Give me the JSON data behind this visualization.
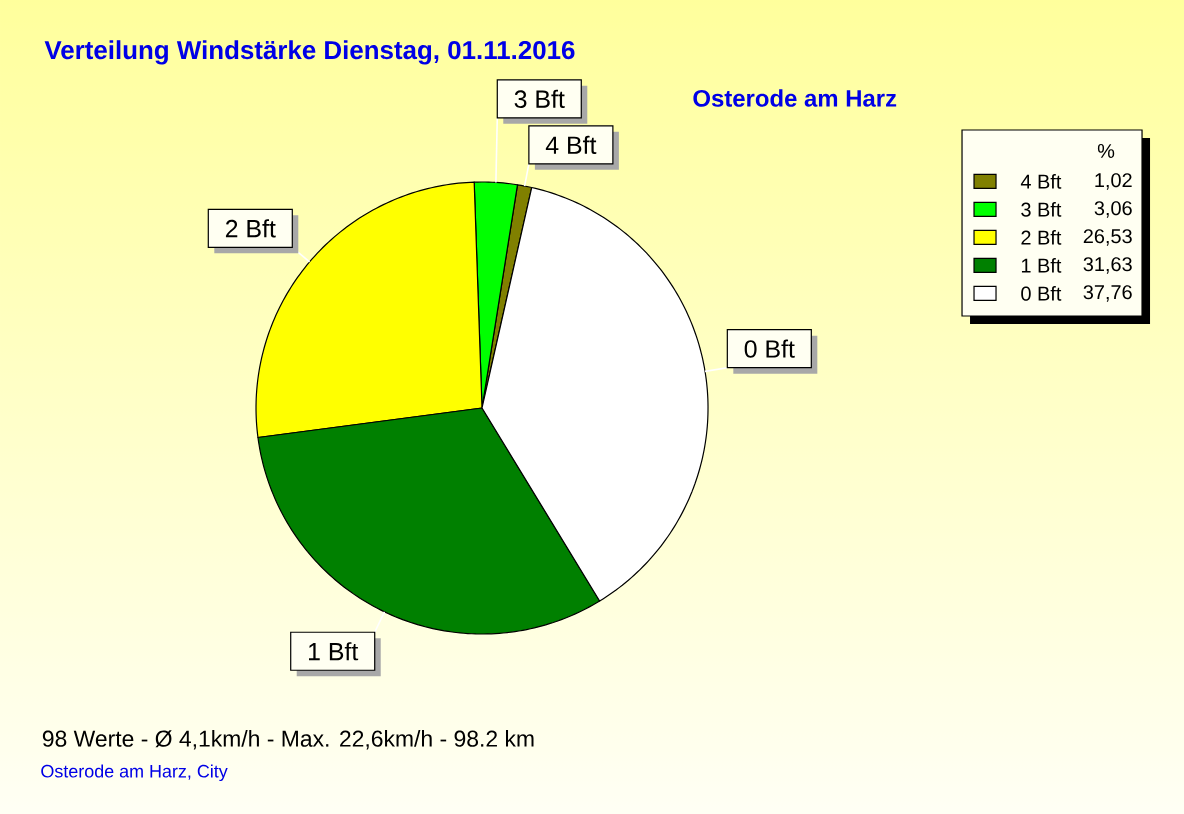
{
  "chart_data": {
    "type": "pie",
    "title": "Verteilung Windstärke Dienstag, 01.11.2016",
    "subtitle": "Osterode am Harz",
    "categories": [
      "4 Bft",
      "3 Bft",
      "2 Bft",
      "1 Bft",
      "0 Bft"
    ],
    "values": [
      1.02,
      3.06,
      26.53,
      31.63,
      37.76
    ],
    "value_labels": [
      "1,02",
      "3,06",
      "26,53",
      "31,63",
      "37,76"
    ],
    "colors": [
      "#808000",
      "#00ff00",
      "#ffff00",
      "#008000",
      "#ffffff"
    ],
    "legend": "top right",
    "legend_title": "%",
    "annotations": [
      "98 Werte - Ø 4,1km/h - Max. 22,6km/h - 98.2 km",
      "Osterode am Harz, City"
    ]
  }
}
